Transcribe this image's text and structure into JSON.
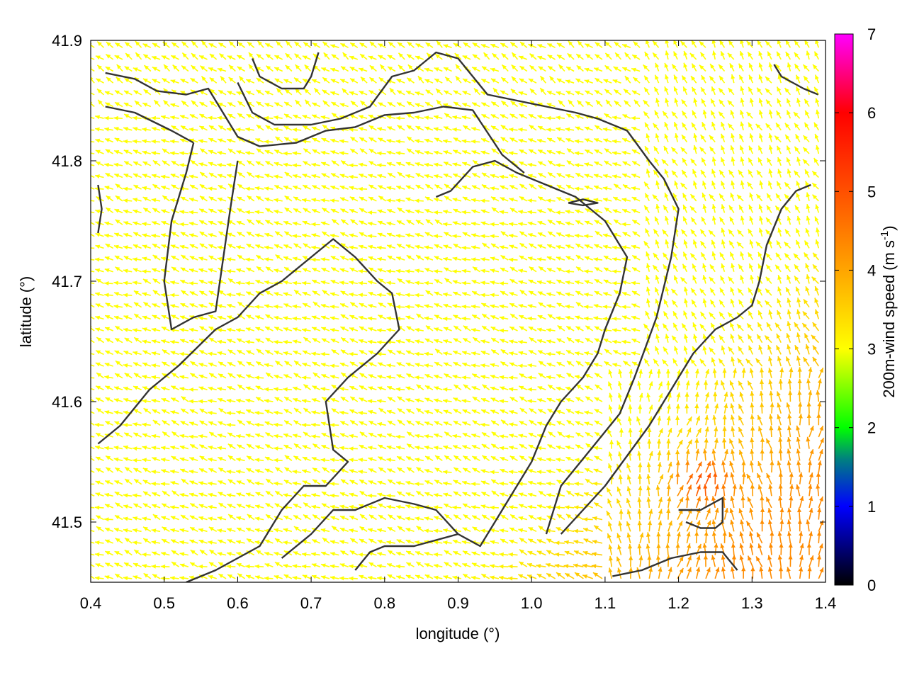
{
  "chart_data": {
    "type": "vector-field",
    "xlabel": "longitude (°)",
    "ylabel": "latitude (°)",
    "colorbar_label_main": "200m-wind speed (m s",
    "colorbar_label_sup": "-1",
    "colorbar_label_end": ")",
    "xlim": [
      0.4,
      1.4
    ],
    "ylim": [
      41.45,
      41.9
    ],
    "x_ticks": [
      "0.4",
      "0.5",
      "0.6",
      "0.7",
      "0.8",
      "0.9",
      "1.0",
      "1.1",
      "1.2",
      "1.3",
      "1.4"
    ],
    "y_ticks": [
      "41.5",
      "41.6",
      "41.7",
      "41.8",
      "41.9"
    ],
    "y_tick_values": [
      41.5,
      41.6,
      41.7,
      41.8,
      41.9
    ],
    "colorbar_ticks": [
      "0",
      "1",
      "2",
      "3",
      "4",
      "5",
      "6",
      "7"
    ],
    "colorbar_range": [
      0,
      7
    ],
    "colormap_stops": [
      {
        "v": 0,
        "color": "#000000"
      },
      {
        "v": 1,
        "color": "#0000ff"
      },
      {
        "v": 1.6,
        "color": "#008080"
      },
      {
        "v": 2,
        "color": "#00ff00"
      },
      {
        "v": 3,
        "color": "#ffff00"
      },
      {
        "v": 4,
        "color": "#ffa500"
      },
      {
        "v": 5,
        "color": "#ff5000"
      },
      {
        "v": 6,
        "color": "#ff0000"
      },
      {
        "v": 7,
        "color": "#ff00ff"
      }
    ],
    "contours": [
      [
        [
          0.42,
          41.873
        ],
        [
          0.46,
          41.868
        ],
        [
          0.49,
          41.858
        ],
        [
          0.53,
          41.855
        ],
        [
          0.56,
          41.86
        ],
        [
          0.6,
          41.82
        ],
        [
          0.63,
          41.812
        ],
        [
          0.68,
          41.815
        ],
        [
          0.72,
          41.825
        ],
        [
          0.76,
          41.828
        ],
        [
          0.8,
          41.838
        ],
        [
          0.84,
          41.84
        ],
        [
          0.88,
          41.845
        ],
        [
          0.92,
          41.842
        ],
        [
          0.96,
          41.805
        ],
        [
          0.99,
          41.79
        ]
      ],
      [
        [
          0.42,
          41.845
        ],
        [
          0.46,
          41.84
        ],
        [
          0.51,
          41.825
        ],
        [
          0.54,
          41.815
        ]
      ],
      [
        [
          0.54,
          41.815
        ],
        [
          0.53,
          41.79
        ],
        [
          0.51,
          41.75
        ],
        [
          0.5,
          41.7
        ],
        [
          0.51,
          41.66
        ],
        [
          0.54,
          41.67
        ],
        [
          0.57,
          41.675
        ],
        [
          0.59,
          41.76
        ],
        [
          0.6,
          41.8
        ]
      ],
      [
        [
          0.62,
          41.885
        ],
        [
          0.63,
          41.87
        ],
        [
          0.66,
          41.86
        ],
        [
          0.69,
          41.86
        ],
        [
          0.7,
          41.87
        ],
        [
          0.71,
          41.89
        ]
      ],
      [
        [
          0.6,
          41.865
        ],
        [
          0.62,
          41.84
        ],
        [
          0.65,
          41.83
        ],
        [
          0.7,
          41.83
        ],
        [
          0.74,
          41.835
        ],
        [
          0.78,
          41.845
        ],
        [
          0.81,
          41.87
        ],
        [
          0.84,
          41.875
        ],
        [
          0.87,
          41.89
        ],
        [
          0.9,
          41.885
        ],
        [
          0.92,
          41.87
        ],
        [
          0.94,
          41.855
        ],
        [
          0.98,
          41.85
        ],
        [
          1.02,
          41.845
        ],
        [
          1.06,
          41.84
        ],
        [
          1.09,
          41.835
        ],
        [
          1.13,
          41.825
        ],
        [
          1.16,
          41.8
        ],
        [
          1.18,
          41.785
        ],
        [
          1.2,
          41.76
        ],
        [
          1.19,
          41.72
        ],
        [
          1.17,
          41.67
        ],
        [
          1.14,
          41.62
        ],
        [
          1.12,
          41.59
        ],
        [
          1.08,
          41.56
        ],
        [
          1.04,
          41.53
        ],
        [
          1.02,
          41.49
        ]
      ],
      [
        [
          0.41,
          41.565
        ],
        [
          0.44,
          41.58
        ],
        [
          0.48,
          41.61
        ],
        [
          0.52,
          41.63
        ],
        [
          0.57,
          41.66
        ],
        [
          0.6,
          41.67
        ],
        [
          0.63,
          41.69
        ],
        [
          0.66,
          41.7
        ],
        [
          0.7,
          41.72
        ],
        [
          0.73,
          41.735
        ],
        [
          0.76,
          41.72
        ],
        [
          0.79,
          41.7
        ],
        [
          0.81,
          41.69
        ],
        [
          0.82,
          41.66
        ],
        [
          0.79,
          41.64
        ],
        [
          0.75,
          41.62
        ],
        [
          0.72,
          41.6
        ],
        [
          0.73,
          41.56
        ],
        [
          0.75,
          41.55
        ],
        [
          0.72,
          41.53
        ],
        [
          0.69,
          41.53
        ],
        [
          0.66,
          41.51
        ],
        [
          0.63,
          41.48
        ],
        [
          0.6,
          41.47
        ],
        [
          0.57,
          41.46
        ],
        [
          0.53,
          41.45
        ]
      ],
      [
        [
          0.66,
          41.47
        ],
        [
          0.7,
          41.49
        ],
        [
          0.73,
          41.51
        ],
        [
          0.76,
          41.51
        ],
        [
          0.8,
          41.52
        ],
        [
          0.84,
          41.515
        ],
        [
          0.87,
          41.51
        ],
        [
          0.9,
          41.49
        ],
        [
          0.93,
          41.48
        ],
        [
          0.95,
          41.5
        ],
        [
          0.97,
          41.52
        ],
        [
          1.0,
          41.55
        ],
        [
          1.02,
          41.58
        ],
        [
          1.04,
          41.6
        ],
        [
          1.07,
          41.62
        ],
        [
          1.09,
          41.64
        ],
        [
          1.1,
          41.66
        ],
        [
          1.12,
          41.69
        ],
        [
          1.13,
          41.72
        ],
        [
          1.1,
          41.75
        ],
        [
          1.06,
          41.77
        ],
        [
          1.02,
          41.78
        ],
        [
          0.98,
          41.79
        ],
        [
          0.95,
          41.8
        ],
        [
          0.92,
          41.795
        ],
        [
          0.89,
          41.775
        ],
        [
          0.87,
          41.77
        ]
      ],
      [
        [
          0.76,
          41.46
        ],
        [
          0.78,
          41.475
        ],
        [
          0.8,
          41.48
        ],
        [
          0.84,
          41.48
        ],
        [
          0.87,
          41.485
        ],
        [
          0.9,
          41.49
        ]
      ],
      [
        [
          1.11,
          41.455
        ],
        [
          1.15,
          41.46
        ],
        [
          1.19,
          41.47
        ],
        [
          1.23,
          41.475
        ],
        [
          1.26,
          41.475
        ],
        [
          1.28,
          41.46
        ]
      ],
      [
        [
          1.2,
          41.51
        ],
        [
          1.23,
          41.51
        ],
        [
          1.26,
          41.52
        ],
        [
          1.26,
          41.5
        ],
        [
          1.25,
          41.495
        ],
        [
          1.23,
          41.495
        ],
        [
          1.21,
          41.5
        ]
      ],
      [
        [
          1.04,
          41.49
        ],
        [
          1.07,
          41.51
        ],
        [
          1.1,
          41.53
        ],
        [
          1.13,
          41.555
        ],
        [
          1.16,
          41.58
        ],
        [
          1.19,
          41.61
        ],
        [
          1.22,
          41.64
        ],
        [
          1.25,
          41.66
        ],
        [
          1.28,
          41.67
        ],
        [
          1.3,
          41.68
        ],
        [
          1.31,
          41.7
        ],
        [
          1.32,
          41.73
        ],
        [
          1.34,
          41.76
        ],
        [
          1.36,
          41.775
        ],
        [
          1.38,
          41.78
        ]
      ],
      [
        [
          1.33,
          41.88
        ],
        [
          1.34,
          41.87
        ],
        [
          1.37,
          41.86
        ],
        [
          1.39,
          41.855
        ]
      ],
      [
        [
          1.05,
          41.765
        ],
        [
          1.07,
          41.763
        ],
        [
          1.09,
          41.765
        ],
        [
          1.07,
          41.768
        ],
        [
          1.05,
          41.765
        ]
      ],
      [
        [
          0.41,
          41.78
        ],
        [
          0.415,
          41.76
        ],
        [
          0.41,
          41.74
        ]
      ]
    ]
  }
}
